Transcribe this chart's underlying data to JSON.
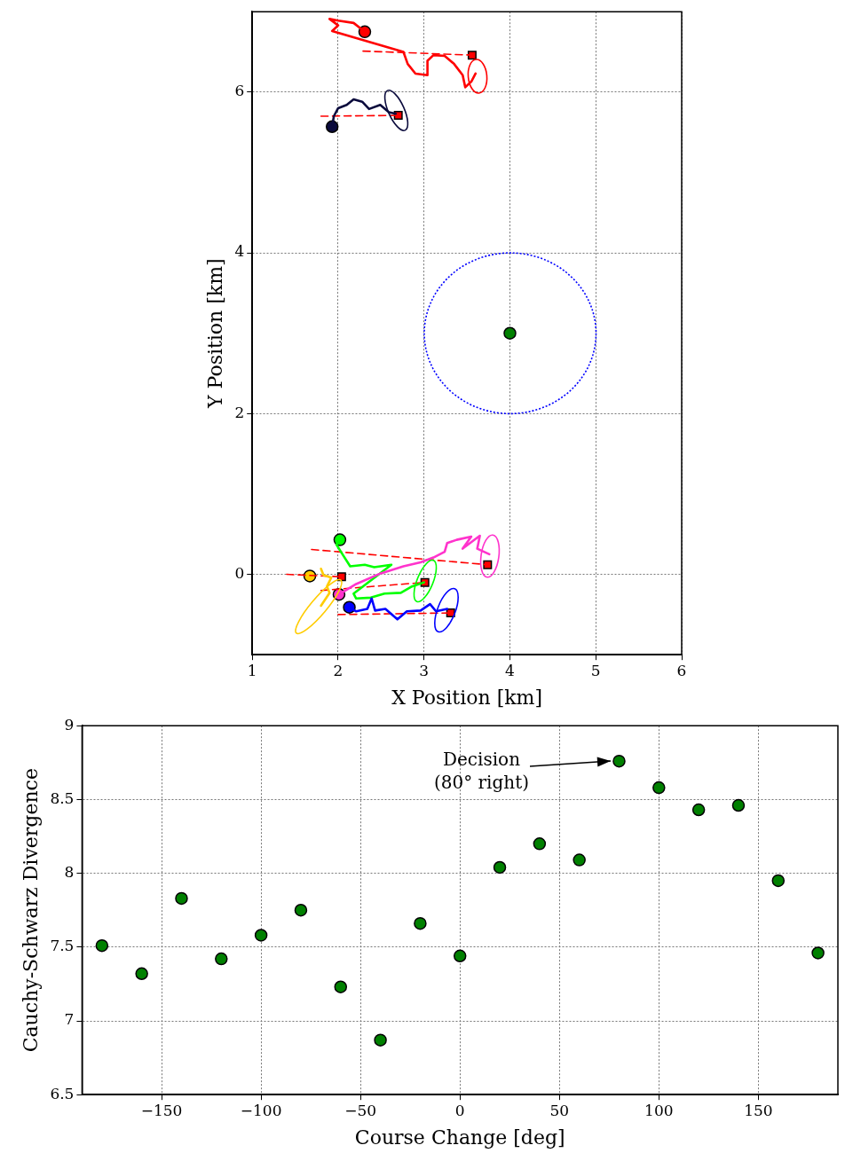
{
  "chart_data": [
    {
      "type": "scatter",
      "xlabel": "X Position [km]",
      "ylabel": "Y Position [km]",
      "xlim": [
        1,
        6
      ],
      "ylim": [
        -1,
        7
      ],
      "xticks": [
        1,
        2,
        3,
        4,
        5,
        6
      ],
      "yticks": [
        0,
        2,
        4,
        6
      ],
      "grid": true,
      "legend": false,
      "series": [
        {
          "type": "scatter",
          "marker": "square",
          "color": "#ff0000",
          "x": [
            3.56,
            2.7,
            3.01,
            3.74,
            2.04,
            3.31
          ],
          "values": [
            6.46,
            5.71,
            -0.1,
            0.12,
            -0.03,
            -0.48
          ]
        },
        {
          "type": "scatter",
          "marker": "circle",
          "colors": [
            "#ff0000",
            "#0a0a3c",
            "#00ff00",
            "#ff33cc",
            "#ffcc00",
            "#0000ff"
          ],
          "x": [
            2.31,
            1.93,
            2.02,
            2.01,
            1.67,
            2.13
          ],
          "values": [
            6.75,
            5.57,
            0.43,
            -0.25,
            -0.02,
            -0.41
          ]
        },
        {
          "type": "scatter",
          "marker": "circle",
          "color": "#008000",
          "x": [
            4
          ],
          "values": [
            3
          ]
        },
        {
          "type": "line",
          "line_style": "dashed",
          "color": "#ff0000",
          "x": [
            2.29,
            3.56
          ],
          "values": [
            6.51,
            6.46
          ]
        },
        {
          "type": "line",
          "line_style": "dashed",
          "color": "#ff0000",
          "x": [
            1.8,
            2.7
          ],
          "values": [
            5.7,
            5.71
          ]
        },
        {
          "type": "line",
          "line_style": "dashed",
          "color": "#ff0000",
          "x": [
            1.8,
            3.01
          ],
          "values": [
            -0.2,
            -0.1
          ]
        },
        {
          "type": "line",
          "line_style": "dashed",
          "color": "#ff0000",
          "x": [
            1.69,
            3.74
          ],
          "values": [
            0.31,
            0.12
          ]
        },
        {
          "type": "line",
          "line_style": "dashed",
          "color": "#ff0000",
          "x": [
            1.4,
            2.04
          ],
          "values": [
            0.0,
            -0.03
          ]
        },
        {
          "type": "line",
          "line_style": "dashed",
          "color": "#ff0000",
          "x": [
            2.0,
            3.31
          ],
          "values": [
            -0.5,
            -0.48
          ]
        },
        {
          "type": "line",
          "line_style": "solid",
          "color": "#ff0000",
          "x": [
            2.31,
            2.18,
            2.0,
            1.9,
            2.0,
            1.93,
            2.76,
            2.81,
            2.9,
            3.04,
            3.04,
            3.11,
            3.24,
            3.35,
            3.45,
            3.48,
            3.55,
            3.6
          ],
          "values": [
            6.75,
            6.86,
            6.89,
            6.91,
            6.83,
            6.76,
            6.5,
            6.35,
            6.23,
            6.21,
            6.39,
            6.46,
            6.45,
            6.35,
            6.21,
            6.06,
            6.13,
            6.23
          ]
        },
        {
          "type": "line",
          "line_style": "solid",
          "color": "#0a0a3c",
          "x": [
            1.93,
            1.95,
            2.0,
            2.1,
            2.18,
            2.28,
            2.36,
            2.49,
            2.59,
            2.67
          ],
          "values": [
            5.57,
            5.7,
            5.8,
            5.84,
            5.91,
            5.88,
            5.79,
            5.84,
            5.75,
            5.73
          ]
        },
        {
          "type": "line",
          "line_style": "solid",
          "color": "#00ff00",
          "x": [
            2.02,
            1.98,
            2.05,
            2.14,
            2.31,
            2.42,
            2.62,
            2.18,
            2.21,
            2.38,
            2.54,
            2.73,
            2.86,
            3.0
          ],
          "values": [
            0.43,
            0.37,
            0.25,
            0.1,
            0.12,
            0.09,
            0.12,
            -0.24,
            -0.3,
            -0.29,
            -0.24,
            -0.23,
            -0.15,
            -0.1
          ]
        },
        {
          "type": "line",
          "line_style": "solid",
          "color": "#ff33cc",
          "x": [
            2.01,
            2.07,
            2.21,
            2.49,
            2.76,
            2.96,
            3.11,
            3.24,
            3.27,
            3.38,
            3.55,
            3.45,
            3.65,
            3.62,
            3.76
          ],
          "values": [
            -0.25,
            -0.21,
            -0.12,
            0.01,
            0.1,
            0.15,
            0.21,
            0.28,
            0.39,
            0.43,
            0.47,
            0.32,
            0.48,
            0.32,
            0.25
          ]
        },
        {
          "type": "line",
          "line_style": "solid",
          "color": "#ffcc00",
          "x": [
            1.8,
            1.83,
            1.92,
            1.87,
            1.9,
            1.8
          ],
          "values": [
            0.07,
            -0.01,
            -0.04,
            -0.15,
            -0.23,
            -0.39
          ]
        },
        {
          "type": "line",
          "line_style": "solid",
          "color": "#0000ff",
          "x": [
            2.13,
            2.21,
            2.34,
            2.39,
            2.43,
            2.55,
            2.69,
            2.8,
            2.96,
            3.07,
            3.14,
            3.27
          ],
          "values": [
            -0.41,
            -0.46,
            -0.43,
            -0.3,
            -0.45,
            -0.43,
            -0.56,
            -0.46,
            -0.45,
            -0.37,
            -0.46,
            -0.43
          ]
        }
      ]
    },
    {
      "type": "scatter",
      "xlabel": "Course Change [deg]",
      "ylabel": "Cauchy-Schwarz Divergence",
      "xlim": [
        -190,
        190
      ],
      "ylim": [
        6.5,
        9
      ],
      "xticks": [
        {
          "value": -150,
          "label": "−150"
        },
        {
          "value": -100,
          "label": "−100"
        },
        {
          "value": -50,
          "label": "−50"
        },
        0,
        50,
        100,
        150
      ],
      "yticks": [
        6.5,
        7,
        7.5,
        8,
        8.5,
        9
      ],
      "grid": true,
      "legend": false,
      "annotations": [
        "Decision\n(80° right)"
      ],
      "series": [
        {
          "type": "scatter",
          "marker": "circle",
          "color": "#008000",
          "x": [
            -180,
            -160,
            -140,
            -120,
            -100,
            -80,
            -60,
            -40,
            -20,
            0,
            20,
            40,
            60,
            80,
            100,
            120,
            140,
            160,
            180
          ],
          "values": [
            7.51,
            7.32,
            7.83,
            7.42,
            7.58,
            7.75,
            7.23,
            6.87,
            7.66,
            7.44,
            8.04,
            8.2,
            8.09,
            8.76,
            8.58,
            8.43,
            8.46,
            7.95,
            7.46
          ]
        }
      ]
    }
  ]
}
